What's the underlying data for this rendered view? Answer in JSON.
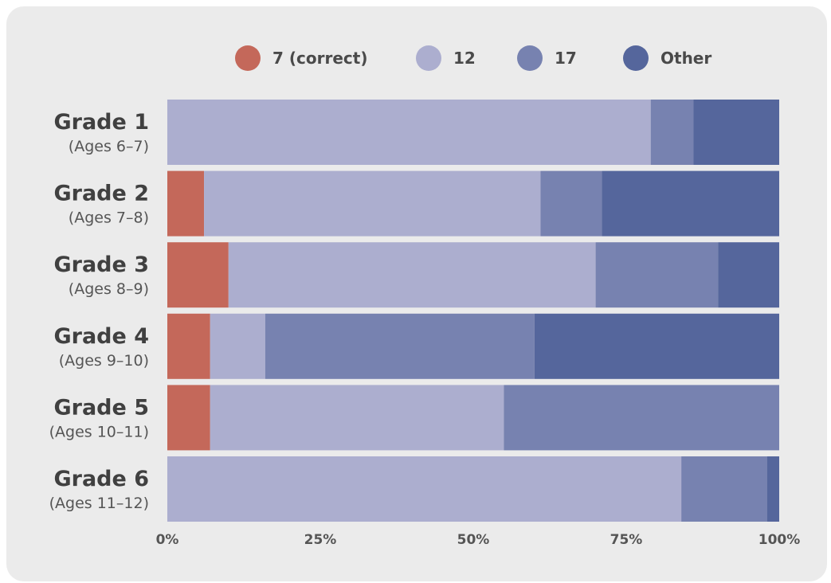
{
  "chart_data": {
    "type": "bar",
    "orientation": "horizontal",
    "stacked": true,
    "normalized": true,
    "categories": [
      {
        "title": "Grade 1",
        "subtitle": "(Ages 6–7)"
      },
      {
        "title": "Grade 2",
        "subtitle": "(Ages 7–8)"
      },
      {
        "title": "Grade 3",
        "subtitle": "(Ages 8–9)"
      },
      {
        "title": "Grade 4",
        "subtitle": "(Ages 9–10)"
      },
      {
        "title": "Grade 5",
        "subtitle": "(Ages 10–11)"
      },
      {
        "title": "Grade 6",
        "subtitle": "(Ages 11–12)"
      }
    ],
    "series": [
      {
        "name": "7 (correct)",
        "color": "#c4685a",
        "values": [
          0,
          6,
          10,
          7,
          7,
          0
        ]
      },
      {
        "name": "12",
        "color": "#acaecf",
        "values": [
          79,
          55,
          60,
          9,
          48,
          84
        ]
      },
      {
        "name": "17",
        "color": "#7782b0",
        "values": [
          7,
          10,
          20,
          44,
          45,
          14
        ]
      },
      {
        "name": "Other",
        "color": "#55669c",
        "values": [
          14,
          29,
          10,
          40,
          0,
          2
        ]
      }
    ],
    "xticks": [
      "0%",
      "25%",
      "50%",
      "75%",
      "100%"
    ],
    "xlim": [
      0,
      100
    ],
    "grid": false,
    "legend_position": "top"
  }
}
